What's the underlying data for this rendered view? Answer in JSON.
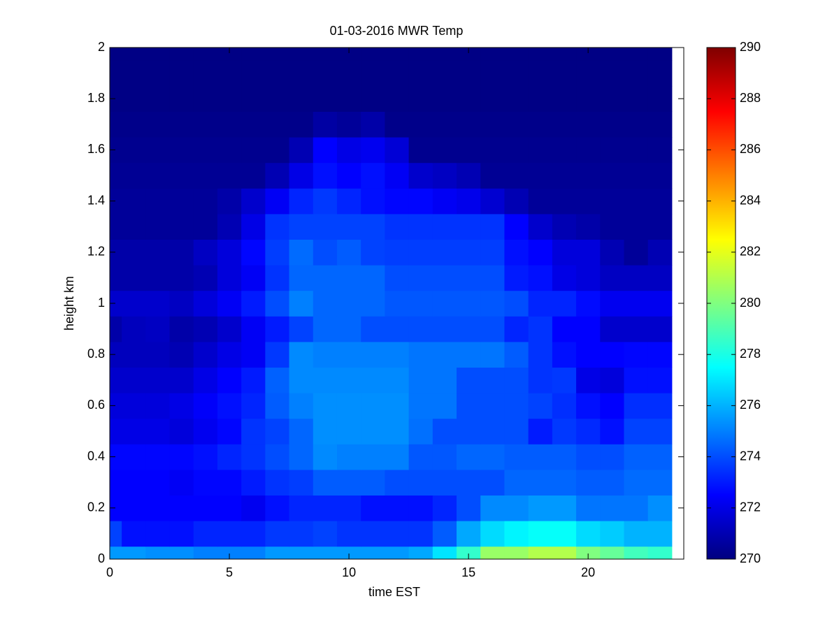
{
  "chart_data": {
    "type": "heatmap",
    "title": "01-03-2016 MWR Temp",
    "x_label": "time EST",
    "y_label": "height km",
    "x": [
      0,
      1,
      2,
      3,
      4,
      5,
      6,
      7,
      8,
      9,
      10,
      11,
      12,
      13,
      14,
      15,
      16,
      17,
      18,
      19,
      20,
      21,
      22,
      23
    ],
    "y": [
      0,
      0.1,
      0.2,
      0.3,
      0.4,
      0.5,
      0.6,
      0.7,
      0.8,
      0.9,
      1,
      1.1,
      1.2,
      1.3,
      1.4,
      1.5,
      1.6,
      1.7,
      1.8,
      1.9,
      2
    ],
    "z": [
      [
        275.5,
        275.5,
        275.3,
        275.3,
        275,
        275,
        275,
        275.5,
        275.5,
        275.5,
        275.5,
        275.5,
        275.5,
        275.8,
        277,
        278.5,
        280.5,
        280.5,
        281,
        281,
        280,
        279.5,
        278.8,
        278.5
      ],
      [
        273.8,
        272.8,
        272.8,
        272.8,
        273.2,
        273.2,
        273.2,
        273.6,
        273.6,
        273.8,
        273.5,
        273.5,
        273.5,
        273.5,
        274.3,
        275.8,
        276.8,
        277.3,
        277.6,
        277.6,
        276.8,
        276.5,
        276,
        276
      ],
      [
        272.5,
        272.5,
        272.5,
        272.5,
        272.5,
        272.5,
        272.2,
        272.8,
        273.2,
        273.2,
        273.2,
        272.8,
        272.8,
        272.8,
        273.2,
        274,
        275.2,
        275.2,
        275.5,
        275.5,
        274.8,
        274.8,
        274.8,
        275.3
      ],
      [
        272.5,
        272.5,
        272.5,
        272.3,
        272.6,
        272.6,
        273,
        273.5,
        273.7,
        274.3,
        274.3,
        274.3,
        274,
        274,
        274,
        274,
        274,
        274.5,
        274.5,
        274.5,
        274.3,
        274.3,
        274.6,
        274.6
      ],
      [
        272.6,
        272.6,
        272.6,
        272.6,
        272.8,
        273.2,
        273.5,
        274,
        274.5,
        275.2,
        275,
        275,
        275,
        274.2,
        274.2,
        274.5,
        274.5,
        274.3,
        274.3,
        274.3,
        274,
        274,
        274.4,
        274.4
      ],
      [
        272,
        272,
        272,
        271.8,
        272.2,
        272.6,
        273.5,
        273.8,
        274.5,
        275.3,
        275.3,
        275.3,
        275.3,
        274.7,
        274,
        274,
        274,
        274,
        273,
        273.6,
        273.3,
        272.8,
        273.8,
        273.8
      ],
      [
        271.8,
        271.8,
        271.8,
        272,
        272.4,
        272.8,
        273.2,
        274.3,
        275,
        275.3,
        275.3,
        275.3,
        275.3,
        274.8,
        274.8,
        274,
        274,
        274,
        273.8,
        273.4,
        272.8,
        272.5,
        273.4,
        273.4
      ],
      [
        271.5,
        271.5,
        271.5,
        271.5,
        272,
        272.5,
        273,
        274.4,
        275.2,
        275.2,
        275.2,
        275.2,
        275.2,
        274.8,
        274.8,
        274,
        274,
        274,
        273.5,
        273.6,
        272,
        271.8,
        272.8,
        272.8
      ],
      [
        271.2,
        271.2,
        271.2,
        271,
        271.5,
        272,
        272.3,
        273.6,
        275.2,
        275,
        275,
        275,
        275,
        274.8,
        274.8,
        274.8,
        274.8,
        274.3,
        273.5,
        272.8,
        272.5,
        272.5,
        272.6,
        272.6
      ],
      [
        270.8,
        271.2,
        271.3,
        270.8,
        271,
        271.5,
        272.3,
        273,
        273.8,
        274.5,
        274.5,
        274,
        274,
        274,
        274,
        274,
        274,
        273.2,
        273.5,
        272.5,
        272.5,
        271.5,
        271.5,
        271.5
      ],
      [
        271.5,
        271.5,
        271.5,
        271.3,
        271.8,
        272.3,
        273,
        274,
        275,
        274.5,
        274.5,
        274.5,
        274.2,
        274.2,
        274.2,
        274.2,
        274.2,
        274,
        273.2,
        273.2,
        272.7,
        272.2,
        272.2,
        272.2
      ],
      [
        270.8,
        270.8,
        270.8,
        270.8,
        271,
        271.8,
        272.3,
        273.5,
        274.5,
        274.5,
        274.5,
        274.5,
        274,
        274,
        274,
        274,
        274,
        273,
        272.8,
        272,
        271.8,
        271.3,
        271.3,
        271.3
      ],
      [
        270.8,
        270.8,
        270.8,
        270.8,
        271.3,
        271.8,
        272.6,
        273.7,
        274.6,
        274,
        274.3,
        273.8,
        273.7,
        273.7,
        273.7,
        273.7,
        273.7,
        272.8,
        272.5,
        271.8,
        271.8,
        271,
        270.5,
        271
      ],
      [
        270.5,
        270.5,
        270.5,
        270.5,
        270.5,
        271,
        272,
        273.5,
        273.8,
        273.8,
        273.8,
        273.8,
        273.5,
        273.5,
        273.5,
        273.5,
        273.5,
        272.5,
        271.5,
        271,
        270.8,
        270.5,
        270.5,
        270.5
      ],
      [
        270.5,
        270.5,
        270.5,
        270.5,
        270.5,
        270.8,
        271.5,
        272.3,
        273.2,
        273.6,
        273.2,
        272.8,
        272.6,
        272.6,
        272.3,
        272.1,
        271.6,
        271,
        270.5,
        270.5,
        270.5,
        270.5,
        270.5,
        270.5
      ],
      [
        270.4,
        270.4,
        270.4,
        270.4,
        270.4,
        270.4,
        270.4,
        271,
        272,
        272.8,
        272.5,
        272.8,
        272.3,
        271.5,
        271.3,
        271,
        270.4,
        270.4,
        270.4,
        270.4,
        270.4,
        270.4,
        270.4,
        270.4
      ],
      [
        270.3,
        270.3,
        270.3,
        270.3,
        270.3,
        270.3,
        270.3,
        270.3,
        271,
        272.5,
        272,
        272.2,
        271.7,
        270.3,
        270.3,
        270.3,
        270.3,
        270.3,
        270.3,
        270.3,
        270.3,
        270.3,
        270.3,
        270.3
      ],
      [
        270.2,
        270.2,
        270.2,
        270.2,
        270.2,
        270.2,
        270.2,
        270.2,
        270.2,
        270.7,
        270.5,
        270.8,
        270.2,
        270.2,
        270.2,
        270.2,
        270.2,
        270.2,
        270.2,
        270.2,
        270.2,
        270.2,
        270.2,
        270.2
      ],
      [
        270.1,
        270.1,
        270.1,
        270.1,
        270.1,
        270.1,
        270.1,
        270.1,
        270.1,
        270.1,
        270.1,
        270.1,
        270.1,
        270.1,
        270.1,
        270.1,
        270.1,
        270.1,
        270.1,
        270.1,
        270.1,
        270.1,
        270.1,
        270.1
      ],
      [
        270.1,
        270.1,
        270.1,
        270.1,
        270.1,
        270.1,
        270.1,
        270.1,
        270.1,
        270.1,
        270.1,
        270.1,
        270.1,
        270.1,
        270.1,
        270.1,
        270.1,
        270.1,
        270.1,
        270.1,
        270.1,
        270.1,
        270.1,
        270.1
      ],
      [
        270.1,
        270.1,
        270.1,
        270.1,
        270.1,
        270.1,
        270.1,
        270.1,
        270.1,
        270.1,
        270.1,
        270.1,
        270.1,
        270.1,
        270.1,
        270.1,
        270.1,
        270.1,
        270.1,
        270.1,
        270.1,
        270.1,
        270.1,
        270.1
      ]
    ],
    "xlim": [
      0,
      24
    ],
    "ylim": [
      0,
      2
    ],
    "xticks": [
      0,
      5,
      10,
      15,
      20
    ],
    "yticks": [
      0,
      0.2,
      0.4,
      0.6,
      0.8,
      1,
      1.2,
      1.4,
      1.6,
      1.8,
      2
    ],
    "colormap": "jet",
    "clim": [
      270,
      290
    ],
    "cticks": [
      270,
      272,
      274,
      276,
      278,
      280,
      282,
      284,
      286,
      288,
      290
    ]
  }
}
